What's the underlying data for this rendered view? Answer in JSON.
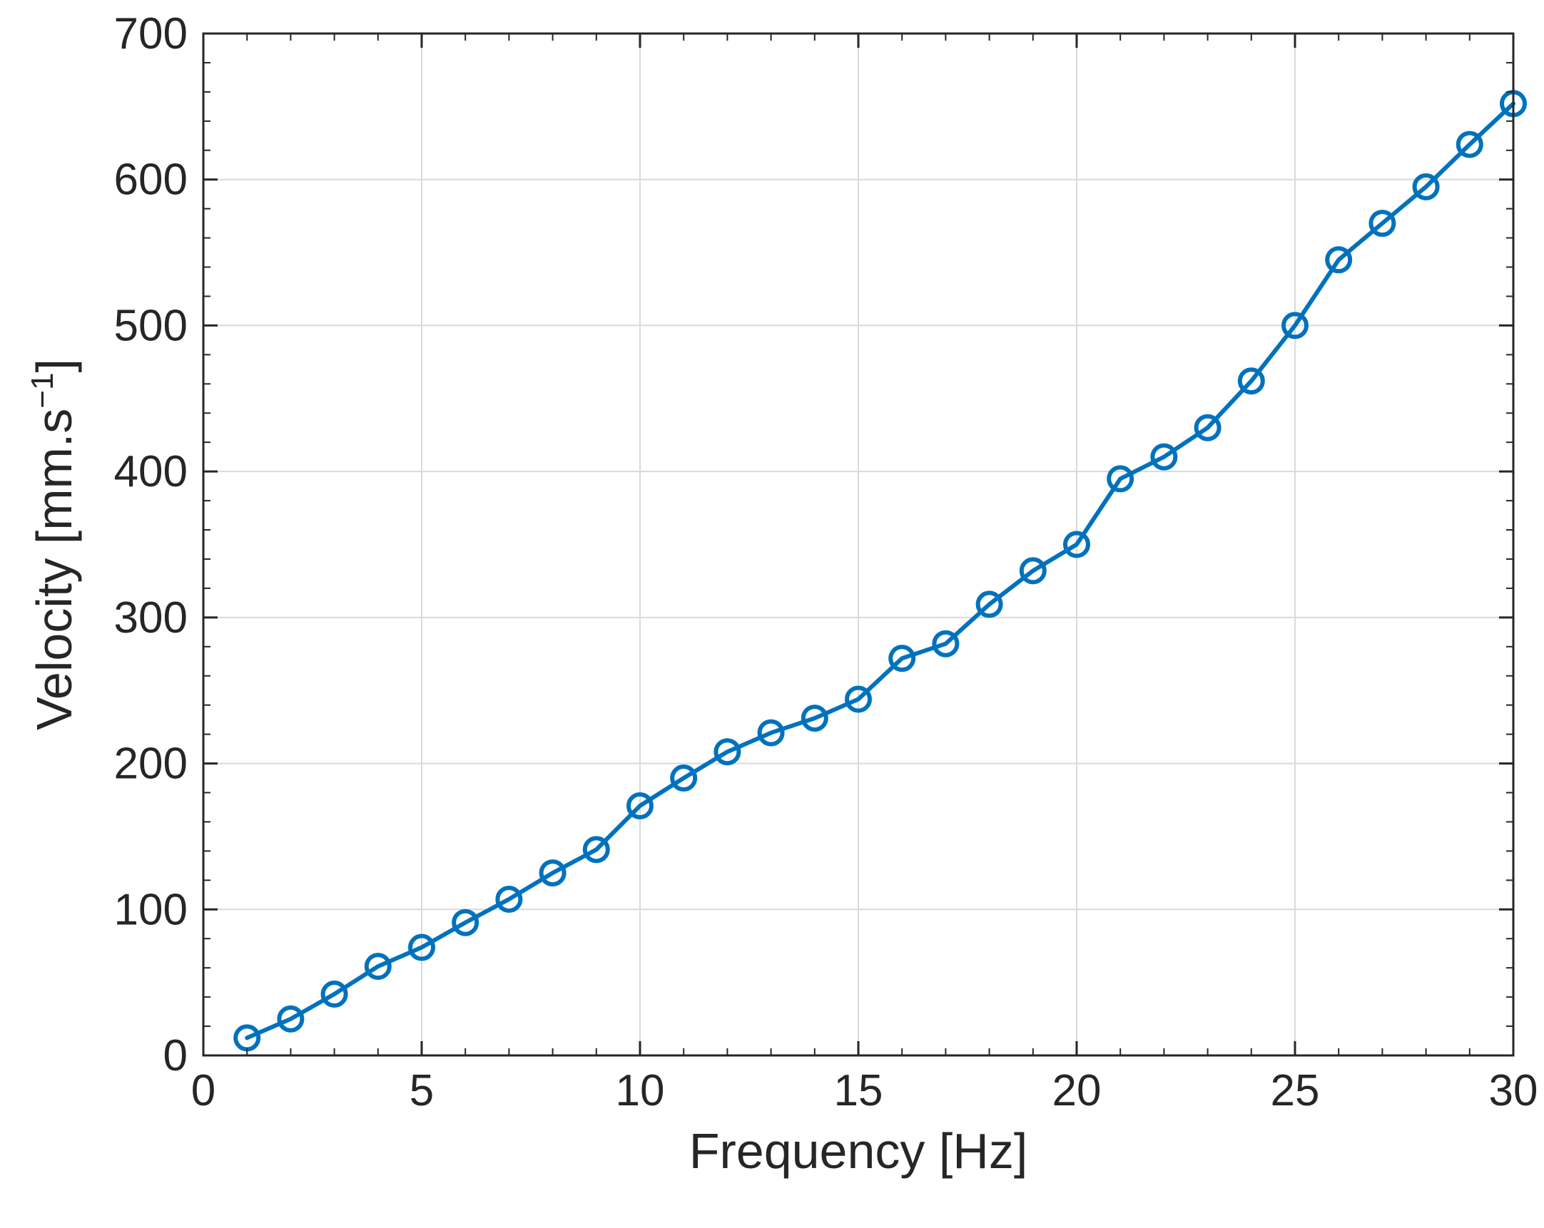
{
  "chart_data": {
    "type": "line",
    "title": "",
    "xlabel": "Frequency [Hz]",
    "ylabel": {
      "main": "Velocity [mm.s",
      "superscript": "−1",
      "close": "]"
    },
    "xlim": [
      0,
      30
    ],
    "ylim": [
      0,
      700
    ],
    "xticks": [
      0,
      5,
      10,
      15,
      20,
      25,
      30
    ],
    "yticks": [
      0,
      100,
      200,
      300,
      400,
      500,
      600,
      700
    ],
    "grid": true,
    "box": true,
    "marker": "circle",
    "colors": {
      "series": "#0072BD",
      "grid": "#d9d9d9",
      "axes": "#262626"
    },
    "series": [
      {
        "x": [
          1,
          2,
          3,
          4,
          5,
          6,
          7,
          8,
          9,
          10,
          11,
          12,
          13,
          14,
          15,
          16,
          17,
          18,
          19,
          20,
          21,
          22,
          23,
          24,
          25,
          26,
          27,
          28,
          29,
          30
        ],
        "y": [
          12,
          25,
          42,
          61,
          74,
          91,
          107,
          125,
          141,
          171,
          190,
          208,
          221,
          231,
          244,
          272,
          282,
          309,
          332,
          350,
          395,
          410,
          430,
          462,
          500,
          545,
          570,
          595,
          624,
          652
        ]
      }
    ]
  }
}
